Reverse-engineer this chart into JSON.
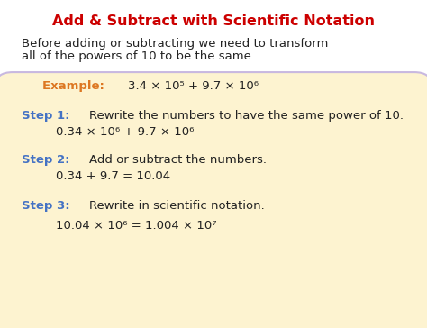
{
  "title": "Add & Subtract with Scientific Notation",
  "title_color": "#cc0000",
  "outer_bg": "#ffffff",
  "outer_border_color": "#b0a0d0",
  "box_color": "#fdf3d0",
  "box_edge_color": "#c8b8e0",
  "intro_line1": "Before adding or subtracting we need to transform",
  "intro_line2": "all of the powers of 10 to be the same.",
  "intro_color": "#222222",
  "example_label": "Example: ",
  "example_label_color": "#dd7722",
  "example_math": "3.4 × 10⁵ + 9.7 × 10⁶",
  "step1_label": "Step 1: ",
  "step1_label_color": "#4472c4",
  "step1_text": "Rewrite the numbers to have the same power of 10.",
  "step1_math": "0.34 × 10⁶ + 9.7 × 10⁶",
  "step2_label": "Step 2: ",
  "step2_label_color": "#4472c4",
  "step2_text": "Add or subtract the numbers.",
  "step2_math": "0.34 + 9.7 = 10.04",
  "step3_label": "Step 3: ",
  "step3_label_color": "#4472c4",
  "step3_text": "Rewrite in scientific notation.",
  "step3_math": "10.04 × 10⁶ = 1.004 × 10⁷",
  "dark_color": "#222222",
  "font_size_title": 11.5,
  "font_size_body": 9.5,
  "font_size_math": 9.5
}
